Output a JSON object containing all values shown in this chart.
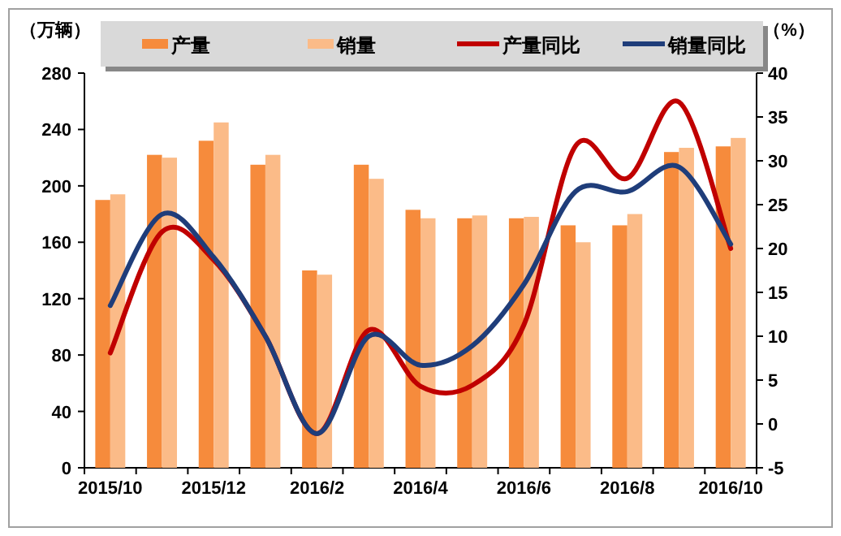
{
  "chart_data": {
    "type": "bar",
    "ylabel": "（万辆）",
    "y2label": "（%）",
    "categories": [
      "2015/10",
      null,
      "2015/12",
      null,
      "2016/2",
      null,
      "2016/4",
      null,
      "2016/6",
      null,
      "2016/8",
      null,
      "2016/10"
    ],
    "series": [
      {
        "name": "产量",
        "color": "#f68b3c",
        "values": [
          190,
          222,
          232,
          215,
          140,
          215,
          183,
          177,
          177,
          172,
          172,
          224,
          228
        ]
      },
      {
        "name": "销量",
        "color": "#fbbb88",
        "values": [
          194,
          220,
          245,
          222,
          137,
          205,
          177,
          179,
          178,
          160,
          180,
          227,
          234
        ]
      },
      {
        "name": "产量同比",
        "type": "line",
        "axis": "y2",
        "color": "#c00000",
        "values": [
          8.1,
          21.9,
          18.7,
          10,
          -1.1,
          10.7,
          4.3,
          4.4,
          11.3,
          31.7,
          28,
          36.7,
          20
        ]
      },
      {
        "name": "销量同比",
        "type": "line",
        "axis": "y2",
        "color": "#1f3d7a",
        "values": [
          13.5,
          23.9,
          19,
          10,
          -1.1,
          10,
          6.7,
          8.9,
          15.9,
          26.5,
          26.5,
          29.3,
          20.5
        ]
      }
    ],
    "ylim": [
      0,
      280
    ],
    "yticks": [
      0,
      40,
      80,
      120,
      160,
      200,
      240,
      280
    ],
    "y2lim": [
      -5,
      40
    ],
    "y2ticks": [
      -5,
      0,
      5,
      10,
      15,
      20,
      25,
      30,
      35,
      40
    ],
    "legend": "top",
    "grid": false
  }
}
